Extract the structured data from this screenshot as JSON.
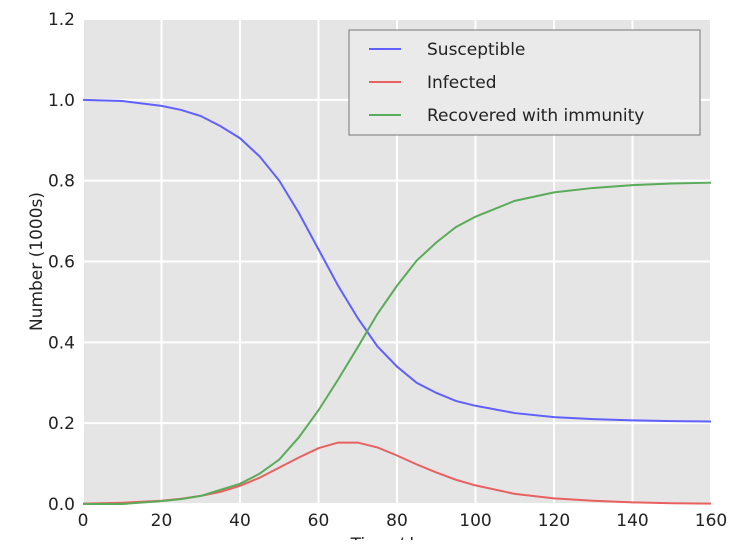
{
  "chart_data": {
    "type": "line",
    "xlabel": "Time /days",
    "ylabel": "Number (1000s)",
    "x": [
      0,
      10,
      20,
      25,
      30,
      35,
      40,
      45,
      50,
      55,
      60,
      65,
      70,
      75,
      80,
      85,
      90,
      95,
      100,
      110,
      120,
      130,
      140,
      150,
      160
    ],
    "series": [
      {
        "name": "Susceptible",
        "color": "#6060ff",
        "values": [
          1.0,
          0.997,
          0.985,
          0.975,
          0.96,
          0.935,
          0.905,
          0.86,
          0.8,
          0.72,
          0.63,
          0.54,
          0.46,
          0.39,
          0.34,
          0.3,
          0.275,
          0.255,
          0.243,
          0.225,
          0.215,
          0.21,
          0.207,
          0.205,
          0.204
        ]
      },
      {
        "name": "Infected",
        "color": "#e86060",
        "values": [
          0.001,
          0.003,
          0.008,
          0.013,
          0.02,
          0.03,
          0.045,
          0.065,
          0.09,
          0.115,
          0.138,
          0.152,
          0.152,
          0.14,
          0.12,
          0.098,
          0.078,
          0.06,
          0.046,
          0.025,
          0.014,
          0.008,
          0.004,
          0.002,
          0.001
        ]
      },
      {
        "name": "Recovered with immunity",
        "color": "#5aab5a",
        "values": [
          0.0,
          0.0,
          0.007,
          0.012,
          0.02,
          0.035,
          0.05,
          0.075,
          0.11,
          0.165,
          0.232,
          0.308,
          0.388,
          0.47,
          0.54,
          0.602,
          0.647,
          0.685,
          0.711,
          0.75,
          0.771,
          0.782,
          0.789,
          0.793,
          0.795
        ]
      }
    ],
    "xlim": [
      0,
      160
    ],
    "ylim": [
      0,
      1.2
    ],
    "xticks": [
      0,
      20,
      40,
      60,
      80,
      100,
      120,
      140,
      160
    ],
    "yticks": [
      {
        "value": 0,
        "label": "0.0"
      },
      0.2,
      0.4,
      0.6,
      0.8,
      {
        "value": 1,
        "label": "1.0"
      },
      1.2
    ],
    "grid": true,
    "legend": "upper right"
  }
}
